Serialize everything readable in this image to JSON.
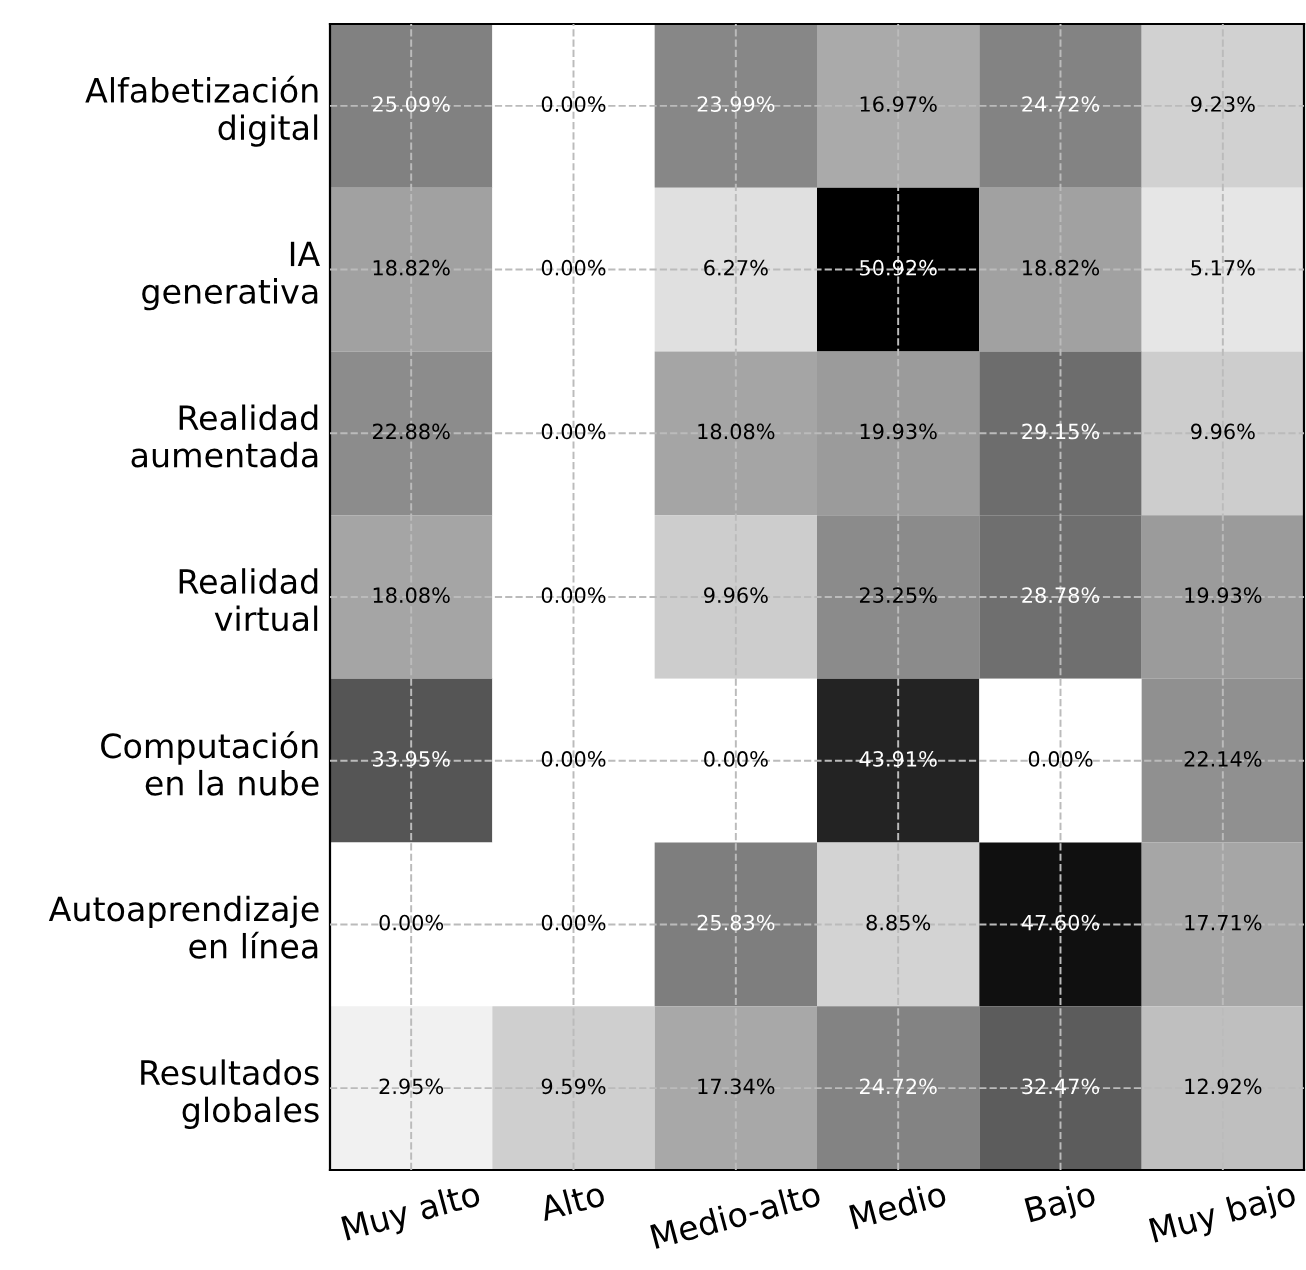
{
  "chart_data": {
    "type": "heatmap",
    "categories": [
      "Muy alto",
      "Alto",
      "Medio-alto",
      "Medio",
      "Bajo",
      "Muy bajo"
    ],
    "y_categories": [
      "Alfabetización\ndigital",
      "IA\ngenerativa",
      "Realidad\naumentada",
      "Realidad\nvirtual",
      "Computación\nen la nube",
      "Autoaprendizaje\nen línea",
      "Resultados\nglobales"
    ],
    "cells": [
      [
        25.09,
        0.0,
        23.99,
        16.97,
        24.72,
        9.23
      ],
      [
        18.82,
        0.0,
        6.27,
        50.92,
        18.82,
        5.17
      ],
      [
        22.88,
        0.0,
        18.08,
        19.93,
        29.15,
        9.96
      ],
      [
        18.08,
        0.0,
        9.96,
        23.25,
        28.78,
        19.93
      ],
      [
        33.95,
        0.0,
        0.0,
        43.91,
        0.0,
        22.14
      ],
      [
        0.0,
        0.0,
        25.83,
        8.85,
        47.6,
        17.71
      ],
      [
        2.95,
        9.59,
        17.34,
        24.72,
        32.47,
        12.92
      ]
    ],
    "cell_labels": [
      [
        "25.09%",
        "0.00%",
        "23.99%",
        "16.97%",
        "24.72%",
        "9.23%"
      ],
      [
        "18.82%",
        "0.00%",
        "6.27%",
        "50.92%",
        "18.82%",
        "5.17%"
      ],
      [
        "22.88%",
        "0.00%",
        "18.08%",
        "19.93%",
        "29.15%",
        "9.96%"
      ],
      [
        "18.08%",
        "0.00%",
        "9.96%",
        "23.25%",
        "28.78%",
        "19.93%"
      ],
      [
        "33.95%",
        "0.00%",
        "0.00%",
        "43.91%",
        "0.00%",
        "22.14%"
      ],
      [
        "0.00%",
        "0.00%",
        "25.83%",
        "8.85%",
        "47.60%",
        "17.71%"
      ],
      [
        "2.95%",
        "9.59%",
        "17.34%",
        "24.72%",
        "32.47%",
        "12.92%"
      ]
    ],
    "grid": true
  }
}
